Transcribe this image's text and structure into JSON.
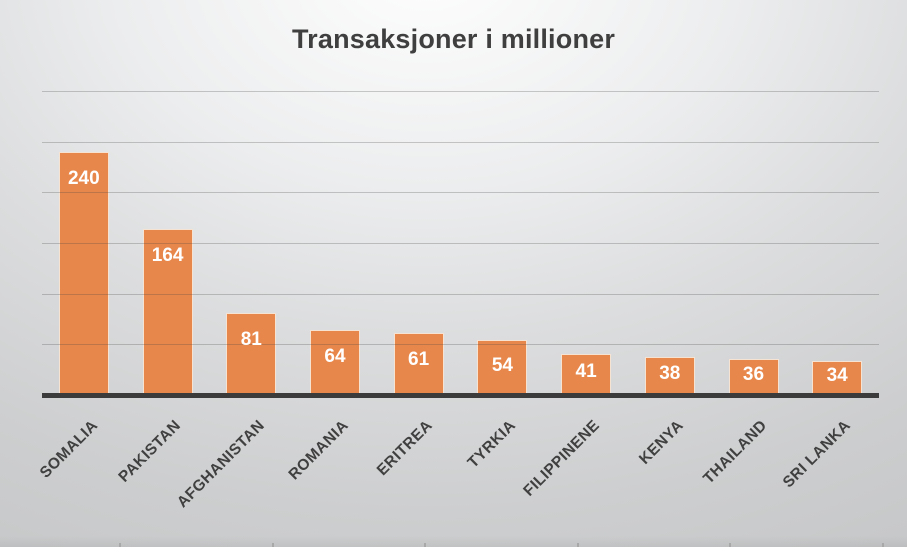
{
  "chart_data": {
    "type": "bar",
    "title": "Transaksjoner i millioner",
    "categories": [
      "SOMALIA",
      "PAKISTAN",
      "AFGHANISTAN",
      "ROMANIA",
      "ERITREA",
      "TYRKIA",
      "FILIPPINENE",
      "KENYA",
      "THAILAND",
      "SRI LANKA"
    ],
    "values": [
      240,
      164,
      81,
      64,
      61,
      54,
      41,
      38,
      36,
      34
    ],
    "xlabel": "",
    "ylabel": "",
    "ylim": [
      0,
      300
    ],
    "gridline_interval": 50,
    "grid": true,
    "y_axis_tick_labels_visible": false,
    "legend_position": "none",
    "data_label_position": "inside-end",
    "colors": {
      "bar_fill": "#E8874B",
      "bar_border": "#F6E3D2",
      "data_label_text": "#FFFFFF",
      "gridline": "rgba(70,70,70,0.27)",
      "axis_line": "#3B3B3B",
      "title_text": "#3F3F3F",
      "category_label_text": "#404040",
      "table_tick": "#A8A8A8"
    }
  }
}
